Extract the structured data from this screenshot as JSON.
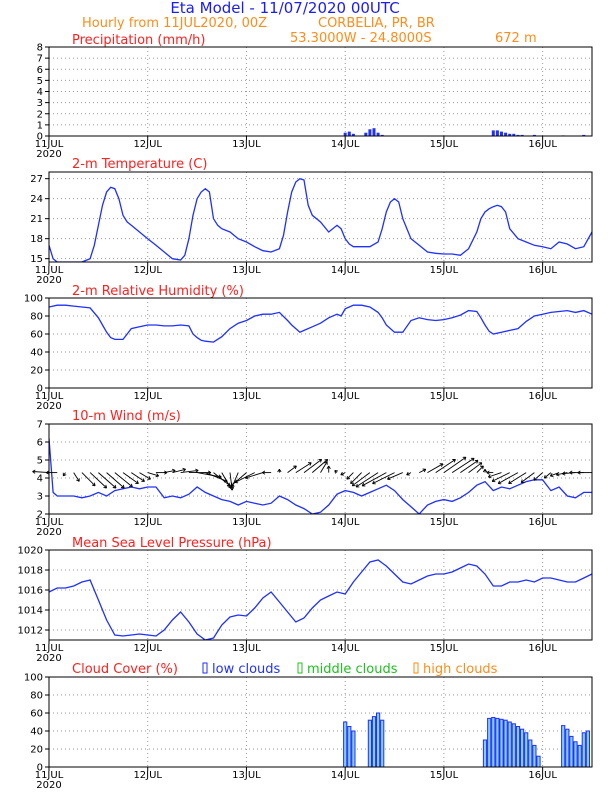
{
  "header": {
    "model_title": "Eta Model - 11/07/2020 00UTC",
    "subtitle": "Hourly from 11JUL2020, 00Z",
    "location": "CORBELIA, PR, BR",
    "coords": "53.3000W - 24.8000S",
    "elevation": "672  m"
  },
  "colors": {
    "title_blue": "#1a1aff",
    "orange": "#ff8c1a",
    "panel_title_red": "#ff2020",
    "line_blue": "#2030ff",
    "bar_fill": "#87cefa",
    "green": "#20c020",
    "grid": "#9a9a9a"
  },
  "x_axis": {
    "tick_labels": [
      "11JUL",
      "12JUL",
      "13JUL",
      "14JUL",
      "15JUL",
      "16JUL"
    ],
    "year_label": "2020",
    "hours_range": [
      0,
      132
    ]
  },
  "chart_data": [
    {
      "type": "bar",
      "title": "Precipitation (mm/h)",
      "ylim": [
        0,
        8
      ],
      "yticks": [
        "0",
        "1",
        "2",
        "3",
        "4",
        "5",
        "6",
        "7",
        "8"
      ],
      "x_hours": [
        72,
        73,
        74,
        77,
        78,
        79,
        80,
        81,
        108,
        109,
        110,
        111,
        112,
        113,
        114,
        115,
        118,
        125,
        130
      ],
      "values": [
        0.3,
        0.4,
        0.2,
        0.3,
        0.6,
        0.7,
        0.3,
        0.1,
        0.5,
        0.5,
        0.4,
        0.3,
        0.2,
        0.2,
        0.1,
        0.1,
        0.1,
        0.05,
        0.1
      ]
    },
    {
      "type": "line",
      "title": "2-m Temperature (C)",
      "ylim": [
        14.5,
        28
      ],
      "yticks": [
        "15",
        "18",
        "21",
        "24",
        "27"
      ],
      "x": [
        0,
        1,
        2,
        4,
        6,
        8,
        10,
        11,
        12,
        13,
        14,
        15,
        16,
        17,
        18,
        19,
        20,
        22,
        24,
        26,
        28,
        30,
        32,
        33,
        34,
        35,
        36,
        37,
        38,
        39,
        40,
        41,
        42,
        44,
        46,
        48,
        50,
        52,
        54,
        56,
        57,
        58,
        59,
        60,
        61,
        62,
        63,
        64,
        66,
        68,
        70,
        71,
        72,
        73,
        74,
        76,
        78,
        80,
        81,
        82,
        83,
        84,
        85,
        86,
        87,
        88,
        90,
        92,
        94,
        96,
        98,
        100,
        102,
        104,
        105,
        106,
        107,
        108,
        109,
        110,
        111,
        112,
        114,
        116,
        118,
        120,
        122,
        124,
        126,
        128,
        130,
        132
      ],
      "y": [
        17,
        15,
        14.5,
        14.5,
        14.5,
        14.5,
        15,
        17,
        20,
        23,
        25,
        25.7,
        25.5,
        24,
        21.5,
        20.5,
        20,
        19,
        18,
        17,
        16,
        15,
        14.8,
        15.5,
        18,
        21.5,
        24,
        25,
        25.5,
        25,
        21,
        20,
        19.5,
        19,
        18,
        17.5,
        16.8,
        16.2,
        16,
        16.5,
        18.5,
        22,
        25,
        26.5,
        27,
        26.8,
        23,
        21.5,
        20.5,
        19,
        20,
        19.5,
        18,
        17.2,
        16.8,
        16.8,
        16.8,
        17.5,
        19.5,
        22,
        23.5,
        24,
        23.5,
        21,
        19.5,
        18,
        17,
        16,
        15.8,
        15.7,
        15.7,
        15.5,
        16.5,
        19,
        21,
        22,
        22.5,
        22.8,
        23,
        22.8,
        22,
        19.5,
        18,
        17.5,
        17,
        16.8,
        16.5,
        17.5,
        17.2,
        16.5,
        16.8,
        19
      ]
    },
    {
      "type": "line",
      "title": "2-m Relative Humidity (%)",
      "ylim": [
        0,
        100
      ],
      "yticks": [
        "0",
        "20",
        "40",
        "60",
        "80",
        "100"
      ],
      "x": [
        0,
        2,
        4,
        6,
        8,
        10,
        12,
        13,
        14,
        15,
        16,
        18,
        20,
        22,
        24,
        26,
        28,
        30,
        32,
        34,
        35,
        36,
        37,
        38,
        40,
        42,
        44,
        46,
        48,
        50,
        52,
        54,
        56,
        58,
        59,
        60,
        61,
        62,
        64,
        66,
        68,
        70,
        71,
        72,
        73,
        74,
        76,
        78,
        80,
        81,
        82,
        84,
        86,
        88,
        90,
        92,
        94,
        96,
        98,
        100,
        102,
        104,
        105,
        106,
        107,
        108,
        110,
        112,
        114,
        116,
        118,
        120,
        122,
        124,
        126,
        128,
        130,
        132
      ],
      "y": [
        90,
        92,
        92,
        91,
        90,
        89,
        78,
        70,
        62,
        56,
        54,
        54,
        66,
        68,
        70,
        70,
        69,
        69,
        70,
        69,
        60,
        56,
        53,
        52,
        51,
        57,
        66,
        72,
        75,
        80,
        82,
        82,
        84,
        75,
        70,
        66,
        62,
        64,
        68,
        72,
        78,
        82,
        80,
        88,
        90,
        92,
        92,
        90,
        84,
        78,
        70,
        62,
        62,
        75,
        78,
        76,
        75,
        76,
        78,
        81,
        86,
        85,
        78,
        70,
        63,
        60,
        62,
        64,
        66,
        74,
        80,
        82,
        84,
        85,
        86,
        84,
        86,
        82
      ]
    },
    {
      "type": "line",
      "title": "10-m Wind (m/s)",
      "ylim": [
        2,
        7
      ],
      "yticks": [
        "2",
        "3",
        "4",
        "5",
        "6",
        "7"
      ],
      "x": [
        0,
        1,
        2,
        4,
        6,
        8,
        10,
        12,
        14,
        16,
        18,
        20,
        22,
        24,
        26,
        28,
        30,
        32,
        34,
        36,
        38,
        40,
        42,
        44,
        46,
        48,
        50,
        52,
        54,
        56,
        58,
        60,
        62,
        64,
        66,
        68,
        70,
        72,
        74,
        76,
        78,
        80,
        82,
        84,
        86,
        88,
        90,
        92,
        94,
        96,
        98,
        100,
        102,
        104,
        106,
        108,
        110,
        112,
        114,
        116,
        118,
        120,
        122,
        124,
        126,
        128,
        130,
        132
      ],
      "y": [
        6.2,
        3.2,
        3.0,
        3.0,
        3.0,
        2.9,
        3.0,
        3.2,
        3.0,
        3.3,
        3.4,
        3.5,
        3.4,
        3.5,
        3.5,
        2.9,
        3.0,
        2.9,
        3.1,
        3.5,
        3.2,
        3.0,
        2.8,
        2.7,
        2.5,
        2.7,
        2.6,
        2.5,
        2.6,
        3.0,
        2.8,
        2.5,
        2.3,
        2.0,
        2.1,
        2.5,
        3.1,
        3.3,
        3.2,
        3.0,
        3.2,
        3.4,
        3.6,
        3.3,
        2.8,
        2.4,
        2.0,
        2.5,
        2.7,
        2.8,
        2.7,
        2.9,
        3.2,
        3.6,
        3.8,
        3.3,
        3.5,
        3.4,
        3.6,
        3.8,
        3.9,
        3.9,
        3.3,
        3.5,
        3.0,
        2.9,
        3.2,
        3.2
      ],
      "barb_hours": [
        0,
        2,
        4,
        6,
        8,
        10,
        12,
        14,
        16,
        18,
        20,
        22,
        24,
        26,
        28,
        30,
        32,
        34,
        36,
        38,
        40,
        42,
        44,
        46,
        48,
        50,
        52,
        54,
        56,
        58,
        60,
        62,
        64,
        66,
        68,
        70,
        72,
        74,
        76,
        78,
        80,
        82,
        84,
        86,
        88,
        90,
        92,
        94,
        96,
        98,
        100,
        102,
        104,
        106,
        108,
        110,
        112,
        114,
        116,
        118,
        120,
        122,
        124,
        126,
        128,
        130,
        132
      ],
      "barb_dx": [
        -1.5,
        -1.0,
        -0.2,
        0.5,
        1.2,
        1.5,
        1.6,
        1.6,
        1.6,
        1.4,
        1.2,
        1.0,
        1.0,
        1.0,
        1.0,
        1.2,
        1.6,
        2.0,
        2.2,
        2.0,
        1.5,
        0.8,
        0.2,
        -0.6,
        -1.4,
        -1.8,
        -1.6,
        -0.8,
        0.0,
        0.8,
        1.4,
        1.6,
        1.4,
        0.6,
        0.0,
        -0.2,
        -0.4,
        -0.6,
        -1.0,
        -1.6,
        -2.0,
        -2.2,
        -2.0,
        -1.4,
        -0.4,
        0.6,
        1.4,
        1.8,
        2.0,
        2.0,
        1.6,
        1.2,
        0.6,
        0.0,
        -0.6,
        -1.2,
        -1.6,
        -1.8,
        -1.6,
        -1.2,
        -0.8,
        -0.6,
        -0.8,
        -1.0,
        -1.2,
        -1.3,
        -1.3
      ],
      "barb_dy": [
        0.1,
        0.0,
        -0.3,
        -0.8,
        -1.2,
        -1.4,
        -1.4,
        -1.4,
        -1.3,
        -1.0,
        -0.8,
        -0.6,
        -0.3,
        0.0,
        0.2,
        0.3,
        0.2,
        0.0,
        -0.4,
        -0.8,
        -1.2,
        -1.4,
        -1.6,
        -1.4,
        -1.2,
        -0.9,
        -0.5,
        0.0,
        0.3,
        0.6,
        0.9,
        1.2,
        1.2,
        1.0,
        0.6,
        0.2,
        -0.2,
        -0.6,
        -1.0,
        -1.2,
        -1.3,
        -1.2,
        -1.0,
        -0.6,
        -0.2,
        0.3,
        0.8,
        1.2,
        1.4,
        1.3,
        1.1,
        0.9,
        0.6,
        0.3,
        0.0,
        -0.4,
        -0.8,
        -1.0,
        -1.0,
        -0.9,
        -0.7,
        -0.5,
        -0.3,
        -0.2,
        -0.1,
        0.0,
        0.0
      ]
    },
    {
      "type": "line",
      "title": "Mean Sea Level Pressure (hPa)",
      "ylim": [
        1011,
        1020
      ],
      "yticks": [
        "1012",
        "1014",
        "1016",
        "1018",
        "1020"
      ],
      "x": [
        0,
        2,
        4,
        6,
        8,
        10,
        12,
        14,
        16,
        18,
        20,
        22,
        24,
        26,
        28,
        30,
        32,
        34,
        36,
        38,
        40,
        42,
        44,
        46,
        48,
        50,
        52,
        54,
        56,
        58,
        60,
        62,
        64,
        66,
        68,
        70,
        72,
        74,
        76,
        78,
        80,
        82,
        84,
        86,
        88,
        90,
        92,
        94,
        96,
        98,
        100,
        102,
        104,
        106,
        108,
        110,
        112,
        114,
        116,
        118,
        120,
        122,
        124,
        126,
        128,
        130,
        132
      ],
      "y": [
        1015.8,
        1016.2,
        1016.2,
        1016.4,
        1016.8,
        1017.0,
        1015.0,
        1013.0,
        1011.5,
        1011.4,
        1011.5,
        1011.6,
        1011.5,
        1011.4,
        1012.0,
        1013.0,
        1013.8,
        1012.8,
        1011.6,
        1011.0,
        1011.2,
        1012.5,
        1013.3,
        1013.5,
        1013.4,
        1014.2,
        1015.2,
        1015.8,
        1014.8,
        1013.8,
        1012.8,
        1013.2,
        1014.2,
        1015.0,
        1015.4,
        1015.8,
        1015.6,
        1016.8,
        1017.8,
        1018.8,
        1019.0,
        1018.4,
        1017.6,
        1016.8,
        1016.6,
        1017.0,
        1017.4,
        1017.6,
        1017.6,
        1017.8,
        1018.2,
        1018.6,
        1018.4,
        1017.6,
        1016.4,
        1016.4,
        1016.8,
        1016.8,
        1017.0,
        1016.8,
        1017.2,
        1017.2,
        1017.0,
        1016.8,
        1016.8,
        1017.2,
        1017.6
      ]
    },
    {
      "type": "bar",
      "title": "Cloud Cover (%)",
      "legend": [
        "low clouds",
        "middle clouds",
        "high clouds"
      ],
      "ylim": [
        0,
        100
      ],
      "yticks": [
        "0",
        "20",
        "40",
        "60",
        "80",
        "100"
      ],
      "x_hours": [
        72,
        73,
        74,
        78,
        79,
        80,
        81,
        106,
        107,
        108,
        109,
        110,
        111,
        112,
        113,
        114,
        115,
        116,
        117,
        118,
        119,
        120,
        121,
        125,
        126,
        127,
        128,
        129,
        130,
        131
      ],
      "values": [
        50,
        45,
        40,
        52,
        56,
        60,
        52,
        30,
        54,
        55,
        54,
        53,
        52,
        50,
        48,
        45,
        42,
        38,
        30,
        24,
        12,
        0,
        0,
        46,
        42,
        34,
        28,
        24,
        38,
        40
      ]
    }
  ]
}
